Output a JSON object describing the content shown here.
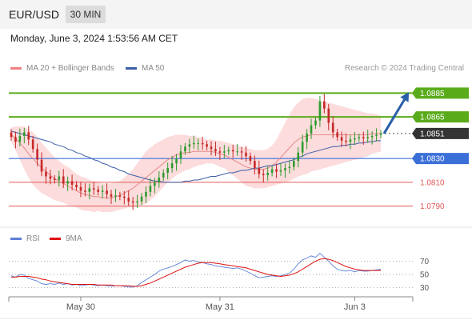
{
  "header": {
    "pair": "EUR/USD",
    "timeframe": "30 MIN"
  },
  "datetime": "Monday, June 3, 2024 1:53:56 AM CET",
  "legend": {
    "ma20": {
      "label": "MA 20 + Bollinger Bands",
      "color": "#f08080"
    },
    "ma50": {
      "label": "MA 50",
      "color": "#3a5ea8"
    }
  },
  "credit": "Research © 2024 Trading Central",
  "rsi_legend": {
    "rsi": {
      "label": "RSI",
      "color": "#5b7fd6"
    },
    "ma9": {
      "label": "9MA",
      "color": "#e01010"
    }
  },
  "colors": {
    "up": "#2e9b2e",
    "down": "#c62828",
    "resistance": "#5aab1a",
    "support": "#3b6fd8",
    "level": "#e05a5a",
    "price": "#333333",
    "arrow": "#2a5fa8"
  },
  "chart_data": [
    {
      "type": "candlestick",
      "ylim": [
        1.0775,
        1.0898
      ],
      "x_ticks": [
        "May 30",
        "May 31",
        "Jun 3"
      ],
      "levels": [
        {
          "value": 1.0885,
          "label": "1.0885",
          "kind": "resistance"
        },
        {
          "value": 1.0865,
          "label": "1.0865",
          "kind": "resistance"
        },
        {
          "value": 1.0851,
          "label": "1.0851",
          "kind": "price"
        },
        {
          "value": 1.083,
          "label": "1.0830",
          "kind": "pivot"
        },
        {
          "value": 1.081,
          "label": "1.0810",
          "kind": "support"
        },
        {
          "value": 1.079,
          "label": "1.0790",
          "kind": "support"
        }
      ],
      "close": [
        1.0848,
        1.0844,
        1.0849,
        1.0852,
        1.0846,
        1.0838,
        1.0829,
        1.0819,
        1.0815,
        1.0813,
        1.0812,
        1.0815,
        1.0809,
        1.0811,
        1.0808,
        1.0806,
        1.0803,
        1.0802,
        1.0805,
        1.0804,
        1.0802,
        1.0803,
        1.08,
        1.0798,
        1.0799,
        1.0798,
        1.0797,
        1.0794,
        1.0793,
        1.0794,
        1.0798,
        1.0802,
        1.0807,
        1.081,
        1.0814,
        1.0818,
        1.0822,
        1.0826,
        1.083,
        1.0836,
        1.084,
        1.0842,
        1.0843,
        1.0843,
        1.0842,
        1.084,
        1.0838,
        1.0836,
        1.0835,
        1.0836,
        1.0837,
        1.0836,
        1.0836,
        1.0835,
        1.0832,
        1.0828,
        1.0822,
        1.0817,
        1.0816,
        1.0818,
        1.0821,
        1.0819,
        1.082,
        1.0822,
        1.0823,
        1.0828,
        1.0835,
        1.0844,
        1.0851,
        1.0858,
        1.0862,
        1.0878,
        1.0872,
        1.086,
        1.0852,
        1.0848,
        1.0845,
        1.0844,
        1.0846,
        1.0847,
        1.0848,
        1.0847,
        1.0848,
        1.0849,
        1.085,
        1.0851
      ],
      "ma20": [
        1.085,
        1.0847,
        1.0843,
        1.0839,
        1.0834,
        1.083,
        1.0826,
        1.0822,
        1.0819,
        1.0816,
        1.0813,
        1.0811,
        1.0809,
        1.0807,
        1.0805,
        1.0803,
        1.0801,
        1.08,
        1.0799,
        1.0798,
        1.0798,
        1.0797,
        1.0797,
        1.0797,
        1.0798,
        1.0799,
        1.0801,
        1.0803,
        1.0805,
        1.0808,
        1.0811,
        1.0814,
        1.0817,
        1.082,
        1.0823,
        1.0826,
        1.0829,
        1.0831,
        1.0833,
        1.0834,
        1.0835,
        1.0835,
        1.0836,
        1.0836,
        1.0836,
        1.0836,
        1.0836,
        1.0835,
        1.0834,
        1.0833,
        1.0831,
        1.0829,
        1.0827,
        1.0825,
        1.0823,
        1.0822,
        1.0821,
        1.0821,
        1.0821,
        1.0822,
        1.0824,
        1.0827,
        1.0831,
        1.0835,
        1.0839,
        1.0843,
        1.0846,
        1.0848,
        1.0849,
        1.085,
        1.085,
        1.085,
        1.085,
        1.085,
        1.085,
        1.085,
        1.085,
        1.085,
        1.085,
        1.085,
        1.085,
        1.085,
        1.085,
        1.0851,
        1.0851,
        1.0851
      ],
      "bb_width": [
        0.0006,
        0.001,
        0.0014,
        0.0018,
        0.002,
        0.0022,
        0.0022,
        0.0021,
        0.002,
        0.0019,
        0.0018,
        0.0017,
        0.0016,
        0.0016,
        0.0015,
        0.0014,
        0.0014,
        0.0014,
        0.0013,
        0.0013,
        0.0012,
        0.0012,
        0.0012,
        0.0012,
        0.0012,
        0.0012,
        0.0013,
        0.0014,
        0.0016,
        0.0018,
        0.002,
        0.0022,
        0.0022,
        0.0022,
        0.0021,
        0.002,
        0.0019,
        0.0018,
        0.0017,
        0.0016,
        0.0015,
        0.0014,
        0.0013,
        0.0012,
        0.0011,
        0.001,
        0.001,
        0.001,
        0.0011,
        0.0011,
        0.0012,
        0.0013,
        0.0014,
        0.0015,
        0.0016,
        0.0016,
        0.0016,
        0.0016,
        0.0016,
        0.0016,
        0.0017,
        0.0019,
        0.0022,
        0.0025,
        0.0028,
        0.003,
        0.0031,
        0.0032,
        0.0032,
        0.0031,
        0.003,
        0.0029,
        0.0028,
        0.0027,
        0.0026,
        0.0025,
        0.0024,
        0.0023,
        0.0022,
        0.0021,
        0.002,
        0.0019,
        0.0018,
        0.0017,
        0.0016,
        0.0015
      ],
      "ma50": [
        1.0853,
        1.0852,
        1.0851,
        1.085,
        1.0849,
        1.0848,
        1.0847,
        1.0846,
        1.0845,
        1.0844,
        1.0842,
        1.0841,
        1.084,
        1.0838,
        1.0837,
        1.0835,
        1.0834,
        1.0832,
        1.0831,
        1.0829,
        1.0828,
        1.0826,
        1.0825,
        1.0823,
        1.0822,
        1.082,
        1.0819,
        1.0817,
        1.0816,
        1.0815,
        1.0814,
        1.0813,
        1.0812,
        1.0811,
        1.0811,
        1.081,
        1.081,
        1.081,
        1.081,
        1.081,
        1.0811,
        1.0811,
        1.0812,
        1.0812,
        1.0813,
        1.0814,
        1.0815,
        1.0815,
        1.0816,
        1.0817,
        1.0818,
        1.0818,
        1.0819,
        1.082,
        1.082,
        1.0821,
        1.0822,
        1.0822,
        1.0823,
        1.0824,
        1.0824,
        1.0825,
        1.0826,
        1.0827,
        1.0828,
        1.0829,
        1.0831,
        1.0832,
        1.0834,
        1.0835,
        1.0836,
        1.0837,
        1.0838,
        1.0839,
        1.084,
        1.084,
        1.0841,
        1.0841,
        1.0842,
        1.0842,
        1.0843,
        1.0843,
        1.0844,
        1.0844,
        1.0845,
        1.0845
      ],
      "forecast": {
        "from": 1.0851,
        "to": 1.0885
      }
    },
    {
      "type": "line",
      "title": "RSI",
      "ylim": [
        15,
        90
      ],
      "y_ticks": [
        70,
        50,
        30
      ],
      "rsi": [
        48,
        46,
        50,
        49,
        44,
        42,
        40,
        36,
        35,
        36,
        35,
        37,
        35,
        36,
        34,
        35,
        33,
        34,
        35,
        34,
        33,
        34,
        33,
        32,
        33,
        33,
        32,
        31,
        31,
        33,
        38,
        42,
        46,
        50,
        55,
        58,
        60,
        62,
        65,
        68,
        72,
        70,
        71,
        69,
        68,
        66,
        65,
        63,
        62,
        61,
        60,
        59,
        60,
        58,
        55,
        52,
        48,
        45,
        46,
        47,
        48,
        47,
        48,
        50,
        52,
        58,
        66,
        72,
        75,
        78,
        76,
        82,
        76,
        70,
        63,
        58,
        56,
        55,
        56,
        54,
        56,
        55,
        55,
        56,
        57,
        58
      ],
      "ma9": [
        46,
        46,
        47,
        47,
        47,
        46,
        45,
        43,
        42,
        40,
        39,
        38,
        37,
        36,
        35,
        35,
        35,
        35,
        35,
        35,
        34,
        34,
        34,
        34,
        33,
        33,
        33,
        33,
        32,
        32,
        33,
        35,
        37,
        40,
        43,
        46,
        49,
        52,
        55,
        58,
        61,
        63,
        65,
        67,
        68,
        68,
        68,
        67,
        66,
        65,
        64,
        63,
        62,
        61,
        60,
        58,
        56,
        54,
        52,
        50,
        49,
        48,
        47,
        48,
        49,
        51,
        54,
        58,
        62,
        66,
        70,
        73,
        74,
        73,
        71,
        68,
        65,
        62,
        60,
        58,
        57,
        56,
        56,
        56,
        56,
        56
      ]
    }
  ]
}
